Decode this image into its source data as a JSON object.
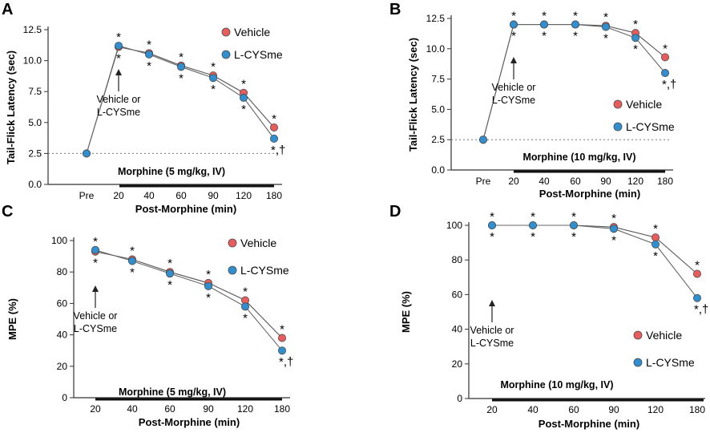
{
  "figure": {
    "panel_letters": [
      "A",
      "B",
      "C",
      "D"
    ]
  },
  "chart_data": [
    {
      "panel": "A",
      "type": "line",
      "ylabel": "Tail-Flick Latency (sec)",
      "xlabel": "Post-Morphine (min)",
      "categories": [
        "Pre",
        "20",
        "40",
        "60",
        "90",
        "120",
        "180"
      ],
      "ylim": [
        0,
        12.5
      ],
      "yticks": [
        "0.0",
        "2.5",
        "5.0",
        "7.5",
        "10.0",
        "12.5"
      ],
      "baseline": 2.5,
      "series": [
        {
          "name": "Vehicle",
          "color": "#e85c5c",
          "values": [
            2.5,
            11.1,
            10.6,
            9.6,
            8.8,
            7.4,
            4.6
          ]
        },
        {
          "name": "L-CYSme",
          "color": "#2f8fd0",
          "values": [
            2.5,
            11.2,
            10.5,
            9.5,
            8.6,
            7.0,
            3.7
          ]
        }
      ],
      "morphine_label": "Morphine (5 mg/kg, IV)",
      "annotation": [
        "Vehicle or",
        "L-CYSme"
      ],
      "significance": {
        "upper": "*",
        "lower": "*",
        "lower_last": "*,†"
      },
      "legend": [
        "Vehicle",
        "L-CYSme"
      ]
    },
    {
      "panel": "B",
      "type": "line",
      "ylabel": "Tail-Flick Latency (sec)",
      "xlabel": "Post-Morphine (min)",
      "categories": [
        "Pre",
        "20",
        "40",
        "60",
        "90",
        "120",
        "180"
      ],
      "ylim": [
        0,
        12.5
      ],
      "yticks": [
        "0.0",
        "2.5",
        "5.0",
        "7.5",
        "10.0",
        "12.5"
      ],
      "baseline": 2.5,
      "series": [
        {
          "name": "Vehicle",
          "color": "#e85c5c",
          "values": [
            2.5,
            12.0,
            12.0,
            12.0,
            11.9,
            11.3,
            9.3
          ]
        },
        {
          "name": "L-CYSme",
          "color": "#2f8fd0",
          "values": [
            2.5,
            12.0,
            12.0,
            12.0,
            11.8,
            10.9,
            8.0
          ]
        }
      ],
      "morphine_label": "Morphine (10 mg/kg, IV)",
      "annotation": [
        "Vehicle or",
        "L-CYSme"
      ],
      "significance": {
        "upper": "*",
        "lower": "*",
        "lower_last": "*,†"
      },
      "legend": [
        "Vehicle",
        "L-CYSme"
      ]
    },
    {
      "panel": "C",
      "type": "line",
      "ylabel": "MPE (%)",
      "xlabel": "Post-Morphine (min)",
      "categories": [
        "20",
        "40",
        "60",
        "90",
        "120",
        "180"
      ],
      "ylim": [
        0,
        100
      ],
      "yticks": [
        "0",
        "20",
        "40",
        "60",
        "80",
        "100"
      ],
      "series": [
        {
          "name": "Vehicle",
          "color": "#e85c5c",
          "values": [
            93,
            88,
            80,
            73,
            62,
            38
          ]
        },
        {
          "name": "L-CYSme",
          "color": "#2f8fd0",
          "values": [
            94,
            87,
            79,
            71,
            58,
            30
          ]
        }
      ],
      "morphine_label": "Morphine (5 mg/kg, IV)",
      "annotation": [
        "Vehicle or",
        "L-CYSme"
      ],
      "significance": {
        "upper": "*",
        "lower": "*",
        "lower_last": "*,†"
      },
      "legend": [
        "Vehicle",
        "L-CYSme"
      ]
    },
    {
      "panel": "D",
      "type": "line",
      "ylabel": "MPE (%)",
      "xlabel": "Post-Morphine (min)",
      "categories": [
        "20",
        "40",
        "60",
        "90",
        "120",
        "180"
      ],
      "ylim": [
        0,
        100
      ],
      "yticks": [
        "0",
        "20",
        "40",
        "60",
        "80",
        "100"
      ],
      "series": [
        {
          "name": "Vehicle",
          "color": "#e85c5c",
          "values": [
            100,
            100,
            100,
            99,
            93,
            72
          ]
        },
        {
          "name": "L-CYSme",
          "color": "#2f8fd0",
          "values": [
            100,
            100,
            100,
            98,
            89,
            58
          ]
        }
      ],
      "morphine_label": "Morphine (10 mg/kg, IV)",
      "annotation": [
        "Vehicle or",
        "L-CYSme"
      ],
      "significance": {
        "upper": "*",
        "lower": "*",
        "lower_last": "*,†"
      },
      "legend": [
        "Vehicle",
        "L-CYSme"
      ]
    }
  ]
}
